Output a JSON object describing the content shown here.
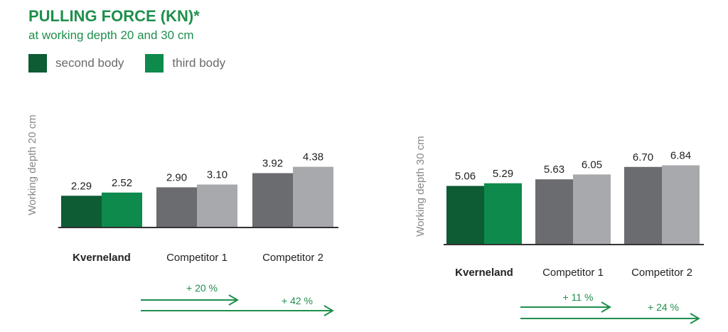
{
  "title": "PULLING FORCE (KN)*",
  "subtitle": "at working depth 20 and 30 cm",
  "legend": [
    {
      "label": "second body",
      "color": "#0d5c34"
    },
    {
      "label": "third body",
      "color": "#0e8a4c"
    }
  ],
  "colors": {
    "kverneland": [
      "#0d5c34",
      "#0e8a4c"
    ],
    "competitor": [
      "#6b6c70",
      "#a8a9ad"
    ],
    "axis": "#333333",
    "arrow": "#1f8f4c"
  },
  "chart_data": [
    {
      "type": "bar",
      "ylabel": "Working depth 20 cm",
      "categories": [
        "Kverneland",
        "Competitor 1",
        "Competitor 2"
      ],
      "series": [
        {
          "name": "second body",
          "values": [
            2.29,
            2.9,
            3.92
          ]
        },
        {
          "name": "third body",
          "values": [
            2.52,
            3.1,
            4.38
          ]
        }
      ],
      "value_labels": [
        [
          "2.29",
          "2.52"
        ],
        [
          "2.90",
          "3.10"
        ],
        [
          "3.92",
          "4.38"
        ]
      ],
      "annotations": [
        {
          "label": "+ 20 %",
          "target": "Competitor 1"
        },
        {
          "label": "+ 42 %",
          "target": "Competitor 2"
        }
      ]
    },
    {
      "type": "bar",
      "ylabel": "Working depth 30 cm",
      "categories": [
        "Kverneland",
        "Competitor 1",
        "Competitor 2"
      ],
      "series": [
        {
          "name": "second body",
          "values": [
            5.06,
            5.63,
            6.7
          ]
        },
        {
          "name": "third body",
          "values": [
            5.29,
            6.05,
            6.84
          ]
        }
      ],
      "value_labels": [
        [
          "5.06",
          "5.29"
        ],
        [
          "5.63",
          "6.05"
        ],
        [
          "6.70",
          "6.84"
        ]
      ],
      "annotations": [
        {
          "label": "+ 11 %",
          "target": "Competitor 1"
        },
        {
          "label": "+ 24 %",
          "target": "Competitor 2"
        }
      ]
    }
  ]
}
